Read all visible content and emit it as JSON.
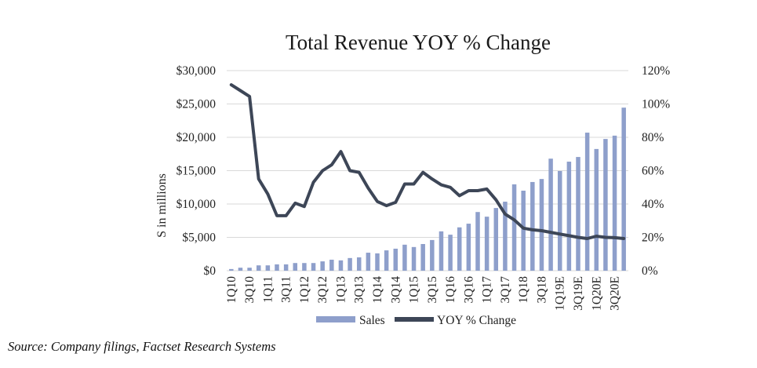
{
  "chart_data": {
    "type": "bar",
    "combo": "bar+line (dual axis)",
    "title": "Total Revenue YOY % Change",
    "xlabel": "",
    "ylabel": "S in millions",
    "y2label": "",
    "ylim": [
      0,
      30000
    ],
    "y2lim": [
      0,
      120
    ],
    "yticks": [
      "$0",
      "$5,000",
      "$10,000",
      "$15,000",
      "$20,000",
      "$25,000",
      "$30,000"
    ],
    "y2ticks": [
      "0%",
      "20%",
      "40%",
      "60%",
      "80%",
      "100%",
      "120%"
    ],
    "grid": true,
    "legend_position": "bottom",
    "categories": [
      "1Q10",
      "2Q10",
      "3Q10",
      "4Q10",
      "1Q11",
      "2Q11",
      "3Q11",
      "4Q11",
      "1Q12",
      "2Q12",
      "3Q12",
      "4Q12",
      "1Q13",
      "2Q13",
      "3Q13",
      "4Q13",
      "1Q14",
      "2Q14",
      "3Q14",
      "4Q14",
      "1Q15",
      "2Q15",
      "3Q15",
      "4Q15",
      "1Q16",
      "2Q16",
      "3Q16",
      "4Q16",
      "1Q17",
      "2Q17",
      "3Q17",
      "4Q17",
      "1Q18",
      "2Q18",
      "3Q18",
      "4Q18",
      "1Q19E",
      "2Q19E",
      "3Q19E",
      "4Q19E",
      "1Q20E",
      "2Q20E",
      "3Q20E",
      "4Q20E"
    ],
    "tick_labels": [
      "1Q10",
      "3Q10",
      "1Q11",
      "3Q11",
      "1Q12",
      "3Q12",
      "1Q13",
      "3Q13",
      "1Q14",
      "3Q14",
      "1Q15",
      "3Q15",
      "1Q16",
      "3Q16",
      "1Q17",
      "3Q17",
      "1Q18",
      "3Q18",
      "1Q19E",
      "3Q19E",
      "1Q20E",
      "3Q20E"
    ],
    "series": [
      {
        "name": "Sales",
        "type": "bar",
        "axis": "left",
        "color": "#8e9fcb",
        "values": [
          250,
          450,
          450,
          800,
          800,
          950,
          950,
          1150,
          1150,
          1150,
          1400,
          1650,
          1550,
          1900,
          2000,
          2700,
          2600,
          3050,
          3300,
          3900,
          3550,
          4000,
          4600,
          5900,
          5400,
          6500,
          7050,
          8800,
          8100,
          9400,
          10350,
          12950,
          12000,
          13300,
          13750,
          16800,
          14950,
          16350,
          17050,
          20700,
          18250,
          19750,
          20250,
          24450
        ]
      },
      {
        "name": "YOY % Change",
        "type": "line",
        "axis": "right",
        "color": "#3d4657",
        "values": [
          111.5,
          108,
          104.5,
          55,
          46,
          33,
          33,
          40.5,
          38.5,
          53,
          60,
          63.5,
          71.5,
          60,
          59,
          49.5,
          41.5,
          39,
          41,
          52,
          52,
          59,
          55,
          51.5,
          50,
          45,
          48,
          48,
          49,
          42.5,
          34,
          30.5,
          25.5,
          24.5,
          24,
          23,
          22,
          21,
          20,
          19.3,
          20.7,
          20,
          19.8,
          19.3
        ]
      }
    ]
  },
  "legend": {
    "sales_label": "Sales",
    "yoy_label": "YOY % Change"
  },
  "source_note": "Source: Company filings, Factset Research Systems"
}
